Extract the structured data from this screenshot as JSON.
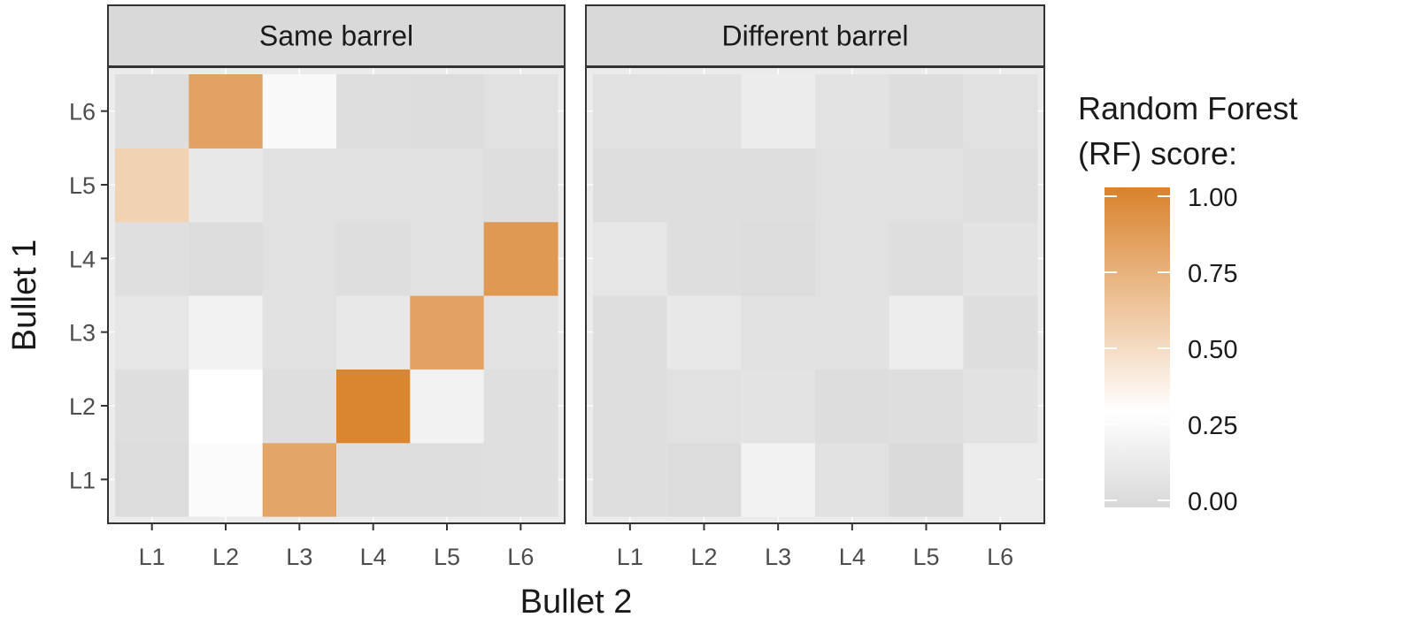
{
  "chart_data": {
    "type": "heatmap",
    "xlabel": "Bullet 2",
    "ylabel": "Bullet 1",
    "categories_x": [
      "L1",
      "L2",
      "L3",
      "L4",
      "L5",
      "L6"
    ],
    "categories_y": [
      "L1",
      "L2",
      "L3",
      "L4",
      "L5",
      "L6"
    ],
    "facets": [
      {
        "label": "Same barrel",
        "values": [
          [
            0.02,
            0.27,
            0.8,
            0.04,
            0.04,
            0.05
          ],
          [
            0.04,
            0.3,
            0.04,
            0.98,
            0.2,
            0.05
          ],
          [
            0.1,
            0.2,
            0.06,
            0.12,
            0.82,
            0.08
          ],
          [
            0.05,
            0.02,
            0.06,
            0.04,
            0.06,
            0.87
          ],
          [
            0.55,
            0.12,
            0.06,
            0.06,
            0.06,
            0.04
          ],
          [
            0.04,
            0.82,
            0.25,
            0.04,
            0.02,
            0.06
          ]
        ]
      },
      {
        "label": "Different barrel",
        "values": [
          [
            0.04,
            0.02,
            0.2,
            0.06,
            0.01,
            0.15
          ],
          [
            0.04,
            0.06,
            0.08,
            0.03,
            0.04,
            0.07
          ],
          [
            0.04,
            0.12,
            0.06,
            0.07,
            0.16,
            0.04
          ],
          [
            0.1,
            0.04,
            0.02,
            0.06,
            0.04,
            0.08
          ],
          [
            0.04,
            0.04,
            0.04,
            0.06,
            0.06,
            0.05
          ],
          [
            0.06,
            0.07,
            0.15,
            0.08,
            0.03,
            0.06
          ]
        ]
      }
    ],
    "legend": {
      "title_line1": "Random Forest",
      "title_line2": "(RF) score:",
      "ticks": [
        1.0,
        0.75,
        0.5,
        0.25,
        0.0
      ],
      "tick_labels": [
        "1.00",
        "0.75",
        "0.50",
        "0.25",
        "0.00"
      ],
      "range": [
        0,
        1
      ],
      "position": "right"
    },
    "colors": {
      "low": "#d9d9d9",
      "mid": "#ffffff",
      "high": "#d9822b",
      "panel_background": "#ebebeb",
      "strip_background": "#d9d9d9",
      "panel_border": "#333333"
    },
    "grid": true
  }
}
